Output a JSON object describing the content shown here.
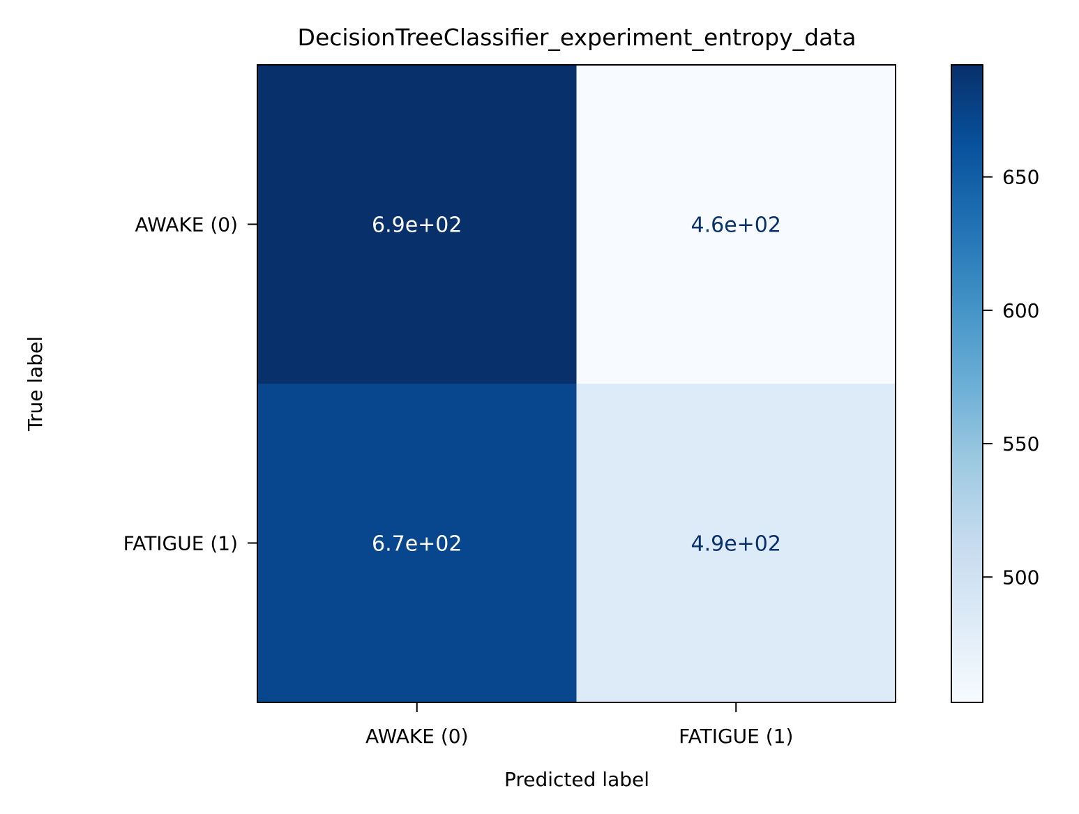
{
  "chart_data": {
    "type": "heatmap",
    "title": "DecisionTreeClassifier_experiment_entropy_data",
    "xlabel": "Predicted label",
    "ylabel": "True label",
    "x_categories": [
      "AWAKE (0)",
      "FATIGUE (1)"
    ],
    "y_categories": [
      "AWAKE (0)",
      "FATIGUE (1)"
    ],
    "values": [
      [
        690,
        460
      ],
      [
        670,
        490
      ]
    ],
    "cell_labels": [
      [
        "6.9e+02",
        "4.6e+02"
      ],
      [
        "6.7e+02",
        "4.9e+02"
      ]
    ],
    "colormap": "Blues",
    "colorbar": {
      "range": [
        453,
        692
      ],
      "ticks": [
        500,
        550,
        600,
        650
      ],
      "tick_labels": [
        "500",
        "550",
        "600",
        "650"
      ]
    },
    "text_colors": {
      "dark_cell": "#ffffff",
      "light_cell": "#08306b"
    }
  }
}
